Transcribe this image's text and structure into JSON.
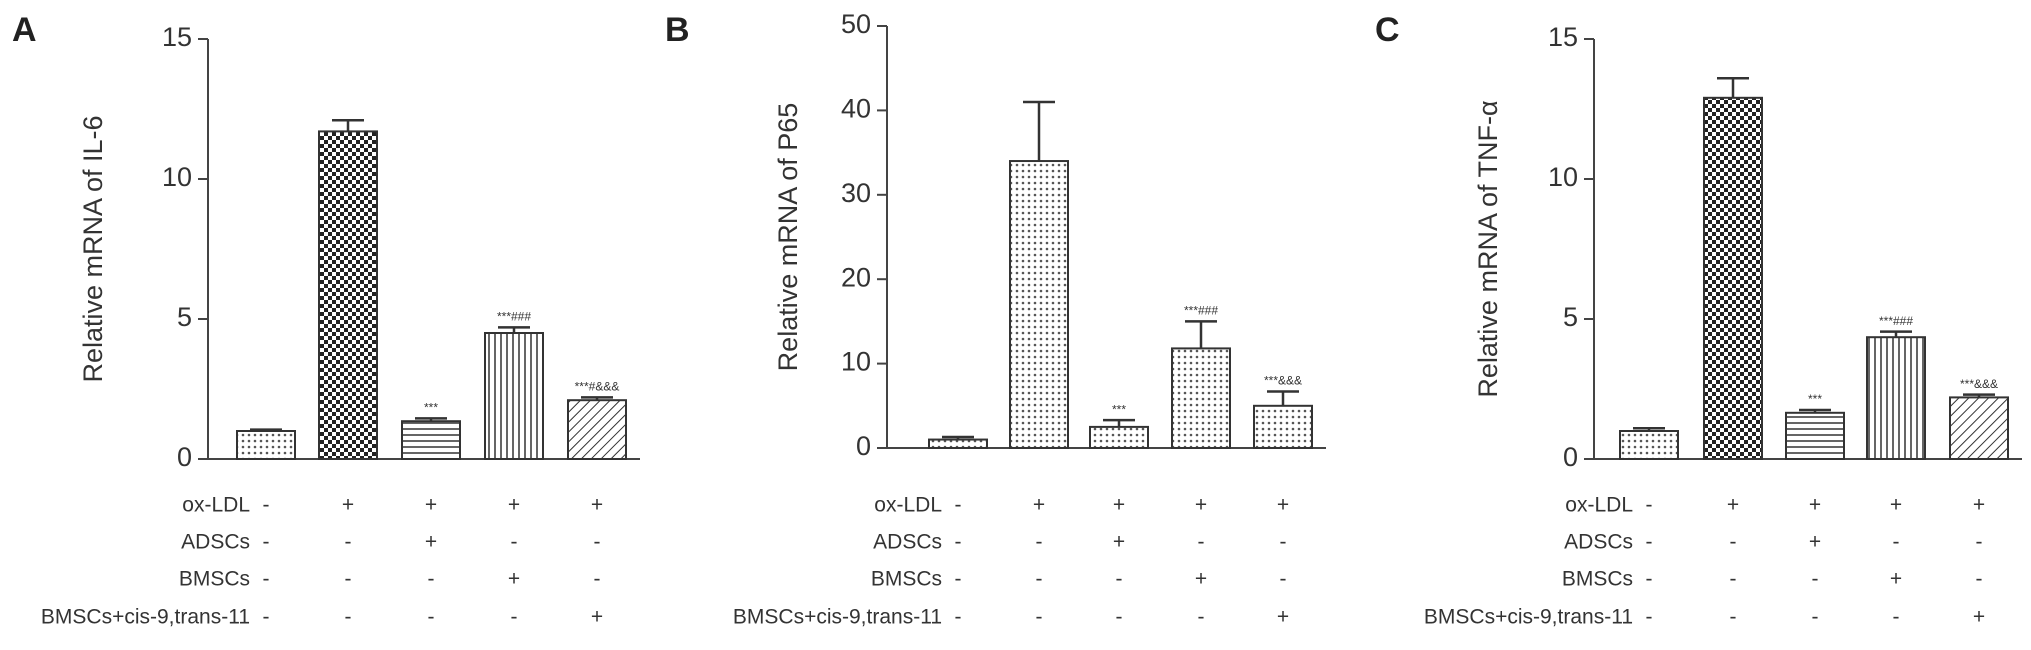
{
  "chart_data": [
    {
      "type": "bar",
      "panel_label": "A",
      "y_label": "Relative mRNA of IL-6",
      "values": [
        1.0,
        11.7,
        1.35,
        4.5,
        2.1
      ],
      "errors": [
        0.05,
        0.4,
        0.1,
        0.2,
        0.1
      ],
      "annotations": [
        null,
        null,
        "***",
        "***###",
        "***#&&&"
      ],
      "patterns": [
        "dots",
        "checker",
        "hlines",
        "vlines",
        "diag"
      ],
      "ylim": [
        0,
        15
      ],
      "yticks": [
        0,
        5,
        10,
        15
      ],
      "treatments": [
        {
          "name": "ox-LDL",
          "signs": [
            "-",
            "+",
            "+",
            "+",
            "+"
          ]
        },
        {
          "name": "ADSCs",
          "signs": [
            "-",
            "-",
            "+",
            "-",
            "-"
          ]
        },
        {
          "name": "BMSCs",
          "signs": [
            "-",
            "-",
            "-",
            "+",
            "-"
          ]
        },
        {
          "name": "BMSCs+cis-9,trans-11",
          "signs": [
            "-",
            "-",
            "-",
            "-",
            "+"
          ]
        }
      ]
    },
    {
      "type": "bar",
      "panel_label": "B",
      "y_label": "Relative mRNA of P65",
      "values": [
        1.0,
        34.0,
        2.5,
        11.8,
        5.0
      ],
      "errors": [
        0.3,
        7.0,
        0.8,
        3.2,
        1.7
      ],
      "annotations": [
        null,
        null,
        "***",
        "***###",
        "***&&&"
      ],
      "patterns": [
        "dots",
        "dots",
        "dots",
        "dots",
        "dots"
      ],
      "ylim": [
        0,
        50
      ],
      "yticks": [
        0,
        10,
        20,
        30,
        40,
        50
      ],
      "treatments": [
        {
          "name": "ox-LDL",
          "signs": [
            "-",
            "+",
            "+",
            "+",
            "+"
          ]
        },
        {
          "name": "ADSCs",
          "signs": [
            "-",
            "-",
            "+",
            "-",
            "-"
          ]
        },
        {
          "name": "BMSCs",
          "signs": [
            "-",
            "-",
            "-",
            "+",
            "-"
          ]
        },
        {
          "name": "BMSCs+cis-9,trans-11",
          "signs": [
            "-",
            "-",
            "-",
            "-",
            "+"
          ]
        }
      ]
    },
    {
      "type": "bar",
      "panel_label": "C",
      "y_label": "Relative mRNA of  TNF-α",
      "values": [
        1.0,
        12.9,
        1.65,
        4.35,
        2.2
      ],
      "errors": [
        0.1,
        0.7,
        0.1,
        0.2,
        0.1
      ],
      "annotations": [
        null,
        null,
        "***",
        "***###",
        "***&&&"
      ],
      "patterns": [
        "dots",
        "checker",
        "hlines",
        "vlines",
        "diag"
      ],
      "ylim": [
        0,
        15
      ],
      "yticks": [
        0,
        5,
        10,
        15
      ],
      "treatments": [
        {
          "name": "ox-LDL",
          "signs": [
            "-",
            "+",
            "+",
            "+",
            "+"
          ]
        },
        {
          "name": "ADSCs",
          "signs": [
            "-",
            "-",
            "+",
            "-",
            "-"
          ]
        },
        {
          "name": "BMSCs",
          "signs": [
            "-",
            "-",
            "-",
            "+",
            "-"
          ]
        },
        {
          "name": "BMSCs+cis-9,trans-11",
          "signs": [
            "-",
            "-",
            "-",
            "-",
            "+"
          ]
        }
      ]
    }
  ]
}
